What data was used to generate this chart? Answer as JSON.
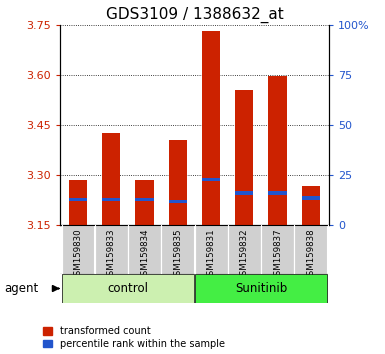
{
  "title": "GDS3109 / 1388632_at",
  "samples": [
    "GSM159830",
    "GSM159833",
    "GSM159834",
    "GSM159835",
    "GSM159831",
    "GSM159832",
    "GSM159837",
    "GSM159838"
  ],
  "red_values": [
    3.285,
    3.425,
    3.285,
    3.405,
    3.73,
    3.555,
    3.595,
    3.265
  ],
  "blue_values": [
    3.225,
    3.225,
    3.225,
    3.22,
    3.285,
    3.245,
    3.245,
    3.23
  ],
  "ymin": 3.15,
  "ymax": 3.75,
  "yticks": [
    3.15,
    3.3,
    3.45,
    3.6,
    3.75
  ],
  "y2ticks": [
    0,
    25,
    50,
    75,
    100
  ],
  "y2labels": [
    "0",
    "25",
    "50",
    "75",
    "100%"
  ],
  "bar_color": "#cc2200",
  "blue_color": "#2255cc",
  "bar_width": 0.55,
  "title_fontsize": 11,
  "left_label_color": "#cc2200",
  "right_label_color": "#2255cc",
  "control_color": "#ccf0b0",
  "sunitinib_color": "#44ee44",
  "xticklabel_bg": "#d0d0d0",
  "agent_label": "agent",
  "legend_red": "transformed count",
  "legend_blue": "percentile rank within the sample",
  "group_ranges": [
    [
      0,
      3,
      "control"
    ],
    [
      4,
      7,
      "Sunitinib"
    ]
  ]
}
